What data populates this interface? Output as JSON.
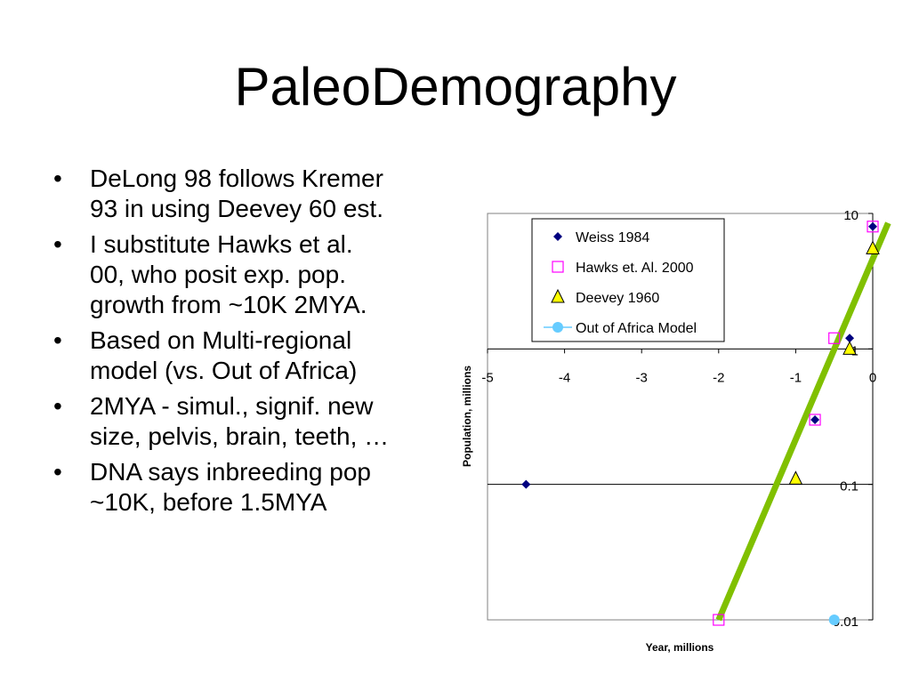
{
  "slide": {
    "title": "PaleoDemography",
    "bullets": [
      {
        "lines": [
          "DeLong 98 follows Kremer",
          "93 in using Deevey 60 est."
        ]
      },
      {
        "lines": [
          "I substitute Hawks et al.",
          "00, who posit exp. pop.",
          "growth from ~10K  2MYA."
        ]
      },
      {
        "lines": [
          "Based on Multi-regional",
          "model (vs. Out of Africa)"
        ]
      },
      {
        "lines": [
          "2MYA - simul., signif. new",
          "size, pelvis, brain, teeth, …"
        ]
      },
      {
        "lines": [
          "DNA says inbreeding pop",
          "~10K, before 1.5MYA"
        ]
      }
    ],
    "bullet_glyph": "•"
  },
  "chart_data": {
    "type": "scatter",
    "xlabel": "Year, millions",
    "ylabel": "Population, millions",
    "xlim": [
      -5,
      0
    ],
    "ylim": [
      0.01,
      10
    ],
    "y_scale": "log",
    "x_ticks": [
      -5,
      -4,
      -3,
      -2,
      -1,
      0
    ],
    "x_tick_labels": [
      "-5",
      "-4",
      "-3",
      "-2",
      "-1",
      "0"
    ],
    "y_ticks": [
      10,
      1,
      0.1,
      0.01
    ],
    "y_tick_labels": [
      "10",
      "1",
      "0.1",
      "0.01"
    ],
    "grid": "horizontal at decades",
    "legend_position": "top",
    "series": [
      {
        "name": "Weiss 1984",
        "marker": "diamond",
        "color": "#000080",
        "points": [
          [
            -4.5,
            0.1
          ],
          [
            -0.75,
            0.3
          ],
          [
            -0.3,
            1.2
          ],
          [
            0,
            8
          ]
        ]
      },
      {
        "name": "Hawks et. Al. 2000",
        "marker": "square-open",
        "color": "#FF00FF",
        "points": [
          [
            -2,
            0.01
          ],
          [
            -0.75,
            0.3
          ],
          [
            -0.5,
            1.2
          ],
          [
            0,
            8
          ]
        ]
      },
      {
        "name": "Deevey 1960",
        "marker": "triangle",
        "color": "#FFFF00",
        "points": [
          [
            -1,
            0.11
          ],
          [
            -0.3,
            1.0
          ],
          [
            0,
            5.5
          ]
        ]
      },
      {
        "name": "Out of Africa Model",
        "marker": "circle-line",
        "color": "#66CCFF",
        "points": [
          [
            -0.5,
            0.01
          ]
        ]
      }
    ],
    "trendline": {
      "color": "#80C000",
      "points": [
        [
          -2,
          0.01
        ],
        [
          0.2,
          8.5
        ]
      ]
    }
  }
}
